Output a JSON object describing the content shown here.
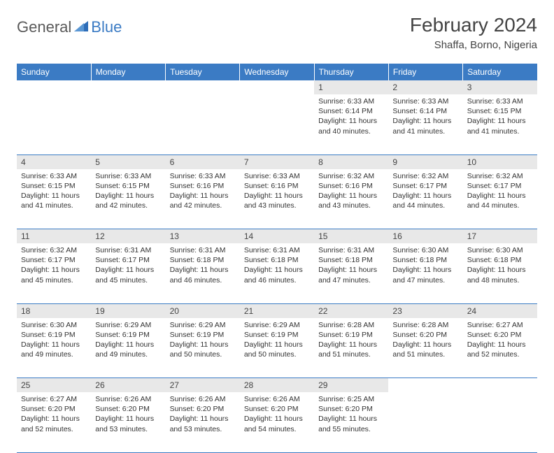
{
  "brand": {
    "text1": "General",
    "text2": "Blue"
  },
  "header": {
    "month": "February 2024",
    "location": "Shaffa, Borno, Nigeria"
  },
  "colors": {
    "accent": "#3b7bc4",
    "dayrow": "#e8e8e8",
    "text": "#333333"
  },
  "weekdays": [
    "Sunday",
    "Monday",
    "Tuesday",
    "Wednesday",
    "Thursday",
    "Friday",
    "Saturday"
  ],
  "weeks": [
    [
      null,
      null,
      null,
      null,
      {
        "n": "1",
        "sr": "6:33 AM",
        "ss": "6:14 PM",
        "dl": "11 hours and 40 minutes."
      },
      {
        "n": "2",
        "sr": "6:33 AM",
        "ss": "6:14 PM",
        "dl": "11 hours and 41 minutes."
      },
      {
        "n": "3",
        "sr": "6:33 AM",
        "ss": "6:15 PM",
        "dl": "11 hours and 41 minutes."
      }
    ],
    [
      {
        "n": "4",
        "sr": "6:33 AM",
        "ss": "6:15 PM",
        "dl": "11 hours and 41 minutes."
      },
      {
        "n": "5",
        "sr": "6:33 AM",
        "ss": "6:15 PM",
        "dl": "11 hours and 42 minutes."
      },
      {
        "n": "6",
        "sr": "6:33 AM",
        "ss": "6:16 PM",
        "dl": "11 hours and 42 minutes."
      },
      {
        "n": "7",
        "sr": "6:33 AM",
        "ss": "6:16 PM",
        "dl": "11 hours and 43 minutes."
      },
      {
        "n": "8",
        "sr": "6:32 AM",
        "ss": "6:16 PM",
        "dl": "11 hours and 43 minutes."
      },
      {
        "n": "9",
        "sr": "6:32 AM",
        "ss": "6:17 PM",
        "dl": "11 hours and 44 minutes."
      },
      {
        "n": "10",
        "sr": "6:32 AM",
        "ss": "6:17 PM",
        "dl": "11 hours and 44 minutes."
      }
    ],
    [
      {
        "n": "11",
        "sr": "6:32 AM",
        "ss": "6:17 PM",
        "dl": "11 hours and 45 minutes."
      },
      {
        "n": "12",
        "sr": "6:31 AM",
        "ss": "6:17 PM",
        "dl": "11 hours and 45 minutes."
      },
      {
        "n": "13",
        "sr": "6:31 AM",
        "ss": "6:18 PM",
        "dl": "11 hours and 46 minutes."
      },
      {
        "n": "14",
        "sr": "6:31 AM",
        "ss": "6:18 PM",
        "dl": "11 hours and 46 minutes."
      },
      {
        "n": "15",
        "sr": "6:31 AM",
        "ss": "6:18 PM",
        "dl": "11 hours and 47 minutes."
      },
      {
        "n": "16",
        "sr": "6:30 AM",
        "ss": "6:18 PM",
        "dl": "11 hours and 47 minutes."
      },
      {
        "n": "17",
        "sr": "6:30 AM",
        "ss": "6:18 PM",
        "dl": "11 hours and 48 minutes."
      }
    ],
    [
      {
        "n": "18",
        "sr": "6:30 AM",
        "ss": "6:19 PM",
        "dl": "11 hours and 49 minutes."
      },
      {
        "n": "19",
        "sr": "6:29 AM",
        "ss": "6:19 PM",
        "dl": "11 hours and 49 minutes."
      },
      {
        "n": "20",
        "sr": "6:29 AM",
        "ss": "6:19 PM",
        "dl": "11 hours and 50 minutes."
      },
      {
        "n": "21",
        "sr": "6:29 AM",
        "ss": "6:19 PM",
        "dl": "11 hours and 50 minutes."
      },
      {
        "n": "22",
        "sr": "6:28 AM",
        "ss": "6:19 PM",
        "dl": "11 hours and 51 minutes."
      },
      {
        "n": "23",
        "sr": "6:28 AM",
        "ss": "6:20 PM",
        "dl": "11 hours and 51 minutes."
      },
      {
        "n": "24",
        "sr": "6:27 AM",
        "ss": "6:20 PM",
        "dl": "11 hours and 52 minutes."
      }
    ],
    [
      {
        "n": "25",
        "sr": "6:27 AM",
        "ss": "6:20 PM",
        "dl": "11 hours and 52 minutes."
      },
      {
        "n": "26",
        "sr": "6:26 AM",
        "ss": "6:20 PM",
        "dl": "11 hours and 53 minutes."
      },
      {
        "n": "27",
        "sr": "6:26 AM",
        "ss": "6:20 PM",
        "dl": "11 hours and 53 minutes."
      },
      {
        "n": "28",
        "sr": "6:26 AM",
        "ss": "6:20 PM",
        "dl": "11 hours and 54 minutes."
      },
      {
        "n": "29",
        "sr": "6:25 AM",
        "ss": "6:20 PM",
        "dl": "11 hours and 55 minutes."
      },
      null,
      null
    ]
  ],
  "labels": {
    "sunrise": "Sunrise:",
    "sunset": "Sunset:",
    "daylight": "Daylight:"
  }
}
